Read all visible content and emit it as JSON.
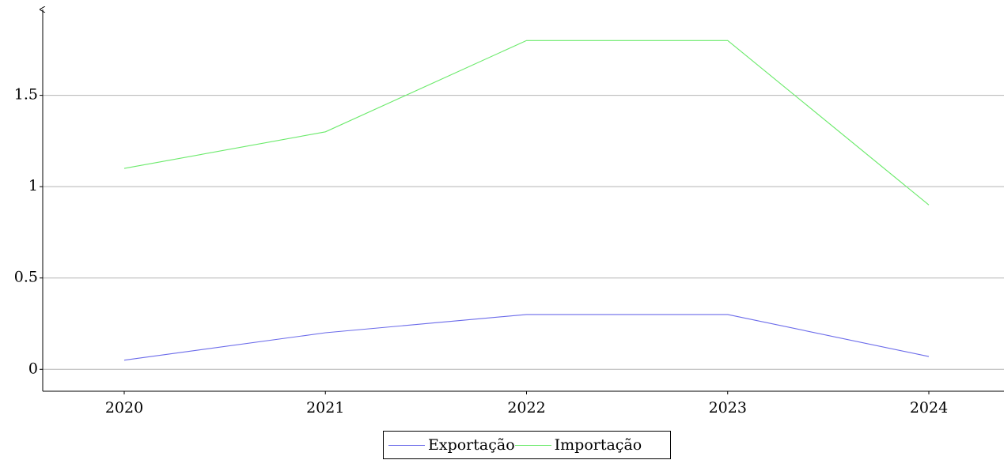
{
  "chart_data": {
    "type": "line",
    "x": [
      "2020",
      "2021",
      "2022",
      "2023",
      "2024"
    ],
    "series": [
      {
        "name": "Exportação",
        "values": [
          0.05,
          0.2,
          0.3,
          0.3,
          0.07
        ],
        "color": "#6b6bea"
      },
      {
        "name": "Importação",
        "values": [
          1.1,
          1.3,
          1.8,
          1.8,
          0.9
        ],
        "color": "#6bea6b"
      }
    ],
    "yticks": [
      0,
      0.5,
      1,
      1.5
    ],
    "ytick_labels": [
      "0",
      "0.5",
      "1",
      "1.5"
    ],
    "ylim": [
      -0.12,
      1.97
    ],
    "grid": "horizontal",
    "legend_position": "bottom-center",
    "title": "",
    "xlabel": "",
    "ylabel": ""
  }
}
